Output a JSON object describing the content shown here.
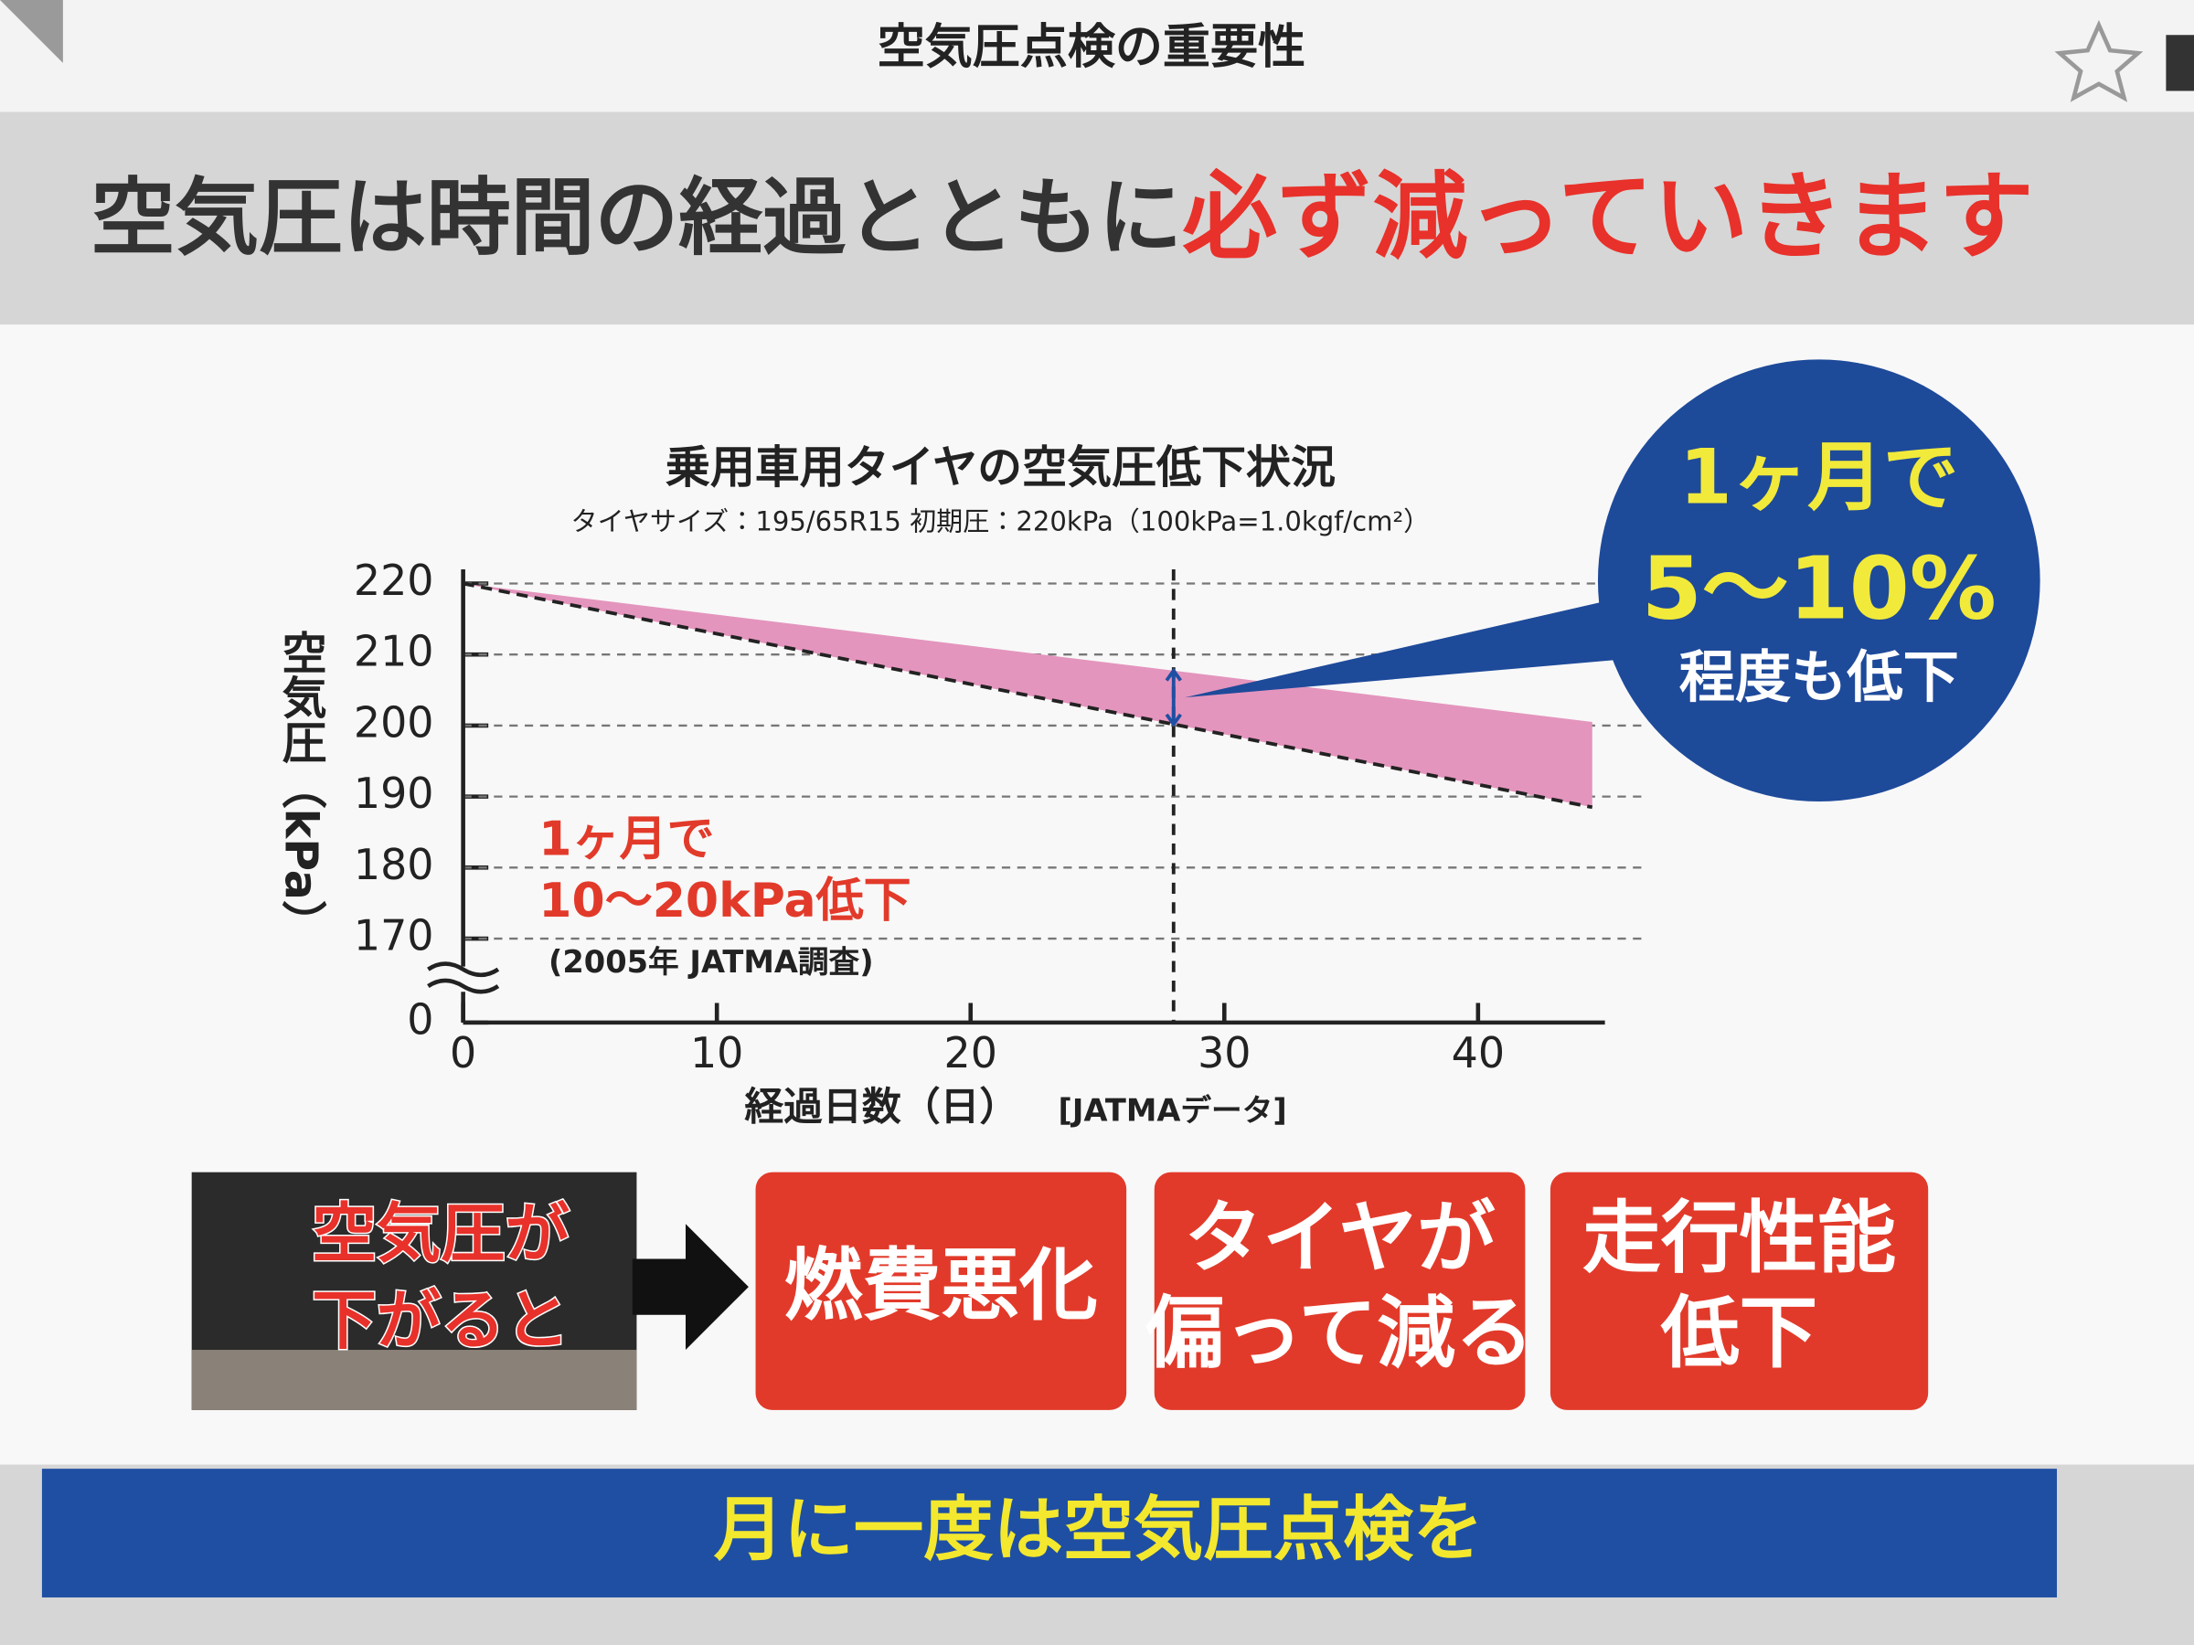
{
  "header": {
    "title": "空気圧点検の重要性"
  },
  "headline": {
    "lead": "空気圧は時間の経過とともに",
    "emphasis": "必ず減っていきます"
  },
  "chart_data": {
    "type": "band",
    "title": "乗用車用タイヤの空気圧低下状況",
    "subtitle": "タイヤサイズ：195/65R15 初期圧：220kPa（100kPa=1.0kgf/cm²）",
    "y_label": "空気圧（kPa）",
    "x_label": "経過日数（日）",
    "source": "[JATMAデータ]",
    "x": [
      0,
      44.5
    ],
    "upper": [
      220,
      200.5
    ],
    "lower": [
      220,
      188.5
    ],
    "color": "#e495bd",
    "xlim": [
      0,
      45
    ],
    "xticks": [
      0,
      10,
      20,
      30,
      40
    ],
    "ylim": [
      0,
      222
    ],
    "yticks": [
      0,
      170,
      180,
      190,
      200,
      210,
      220
    ],
    "y_axis_break": true,
    "grid": true,
    "marker_x": 28,
    "annotation": [
      "1ヶ月で",
      "10〜20kPa低下"
    ],
    "annotation_note": "(2005年 JATMA調査)",
    "callout": [
      "1ヶ月で",
      "5〜10%",
      "程度も低下"
    ]
  },
  "effects": {
    "cause": [
      "空気圧が",
      "下がると"
    ],
    "items": [
      [
        "燃費悪化"
      ],
      [
        "タイヤが",
        "偏って減る"
      ],
      [
        "走行性能",
        "低下"
      ]
    ]
  },
  "footer": {
    "message": "月に一度は空気圧点検を"
  }
}
